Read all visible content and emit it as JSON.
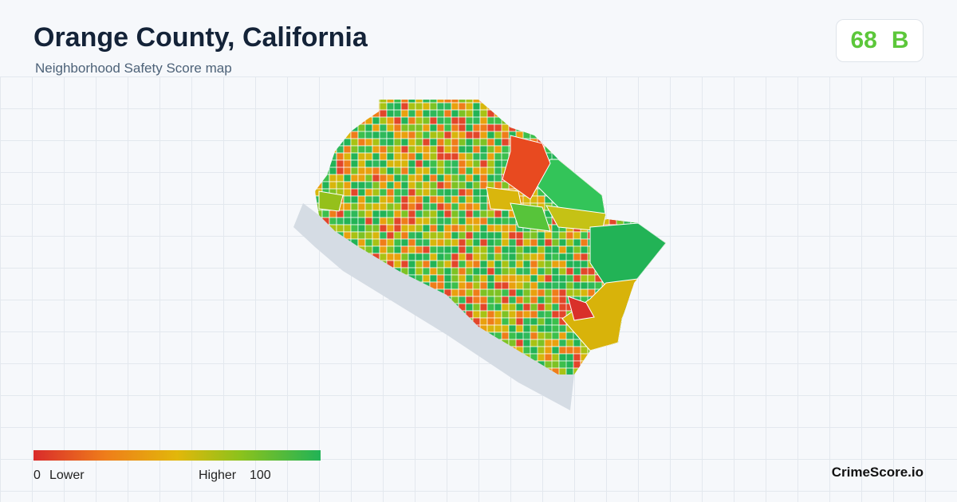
{
  "header": {
    "title": "Orange County, California",
    "subtitle": "Neighborhood Safety Score map"
  },
  "score": {
    "value": "68",
    "grade": "B"
  },
  "legend": {
    "min": "0",
    "min_label": "Lower",
    "max_label": "Higher",
    "max": "100"
  },
  "brand": "CrimeScore.io"
}
